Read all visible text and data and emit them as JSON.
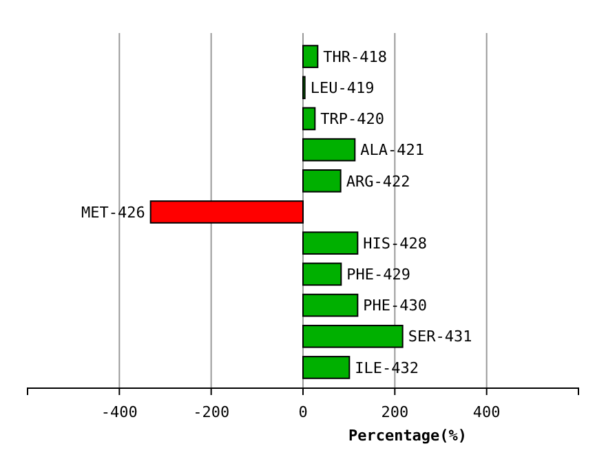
{
  "chart_data": {
    "type": "bar",
    "orientation": "horizontal",
    "xlabel": "Percentage(%)",
    "categories": [
      "THR-418",
      "LEU-419",
      "TRP-420",
      "ALA-421",
      "ARG-422",
      "MET-426",
      "HIS-428",
      "PHE-429",
      "PHE-430",
      "SER-431",
      "ILE-432"
    ],
    "values": [
      32,
      4,
      26,
      113,
      82,
      -332,
      119,
      83,
      119,
      217,
      101
    ],
    "colors": [
      "#00b000",
      "#00b000",
      "#00b000",
      "#00b000",
      "#00b000",
      "#ff0000",
      "#00b000",
      "#00b000",
      "#00b000",
      "#00b000",
      "#00b000"
    ],
    "xlim": [
      -600,
      600
    ],
    "xticks": [
      -400,
      -200,
      0,
      200,
      400
    ],
    "grid": "x"
  }
}
